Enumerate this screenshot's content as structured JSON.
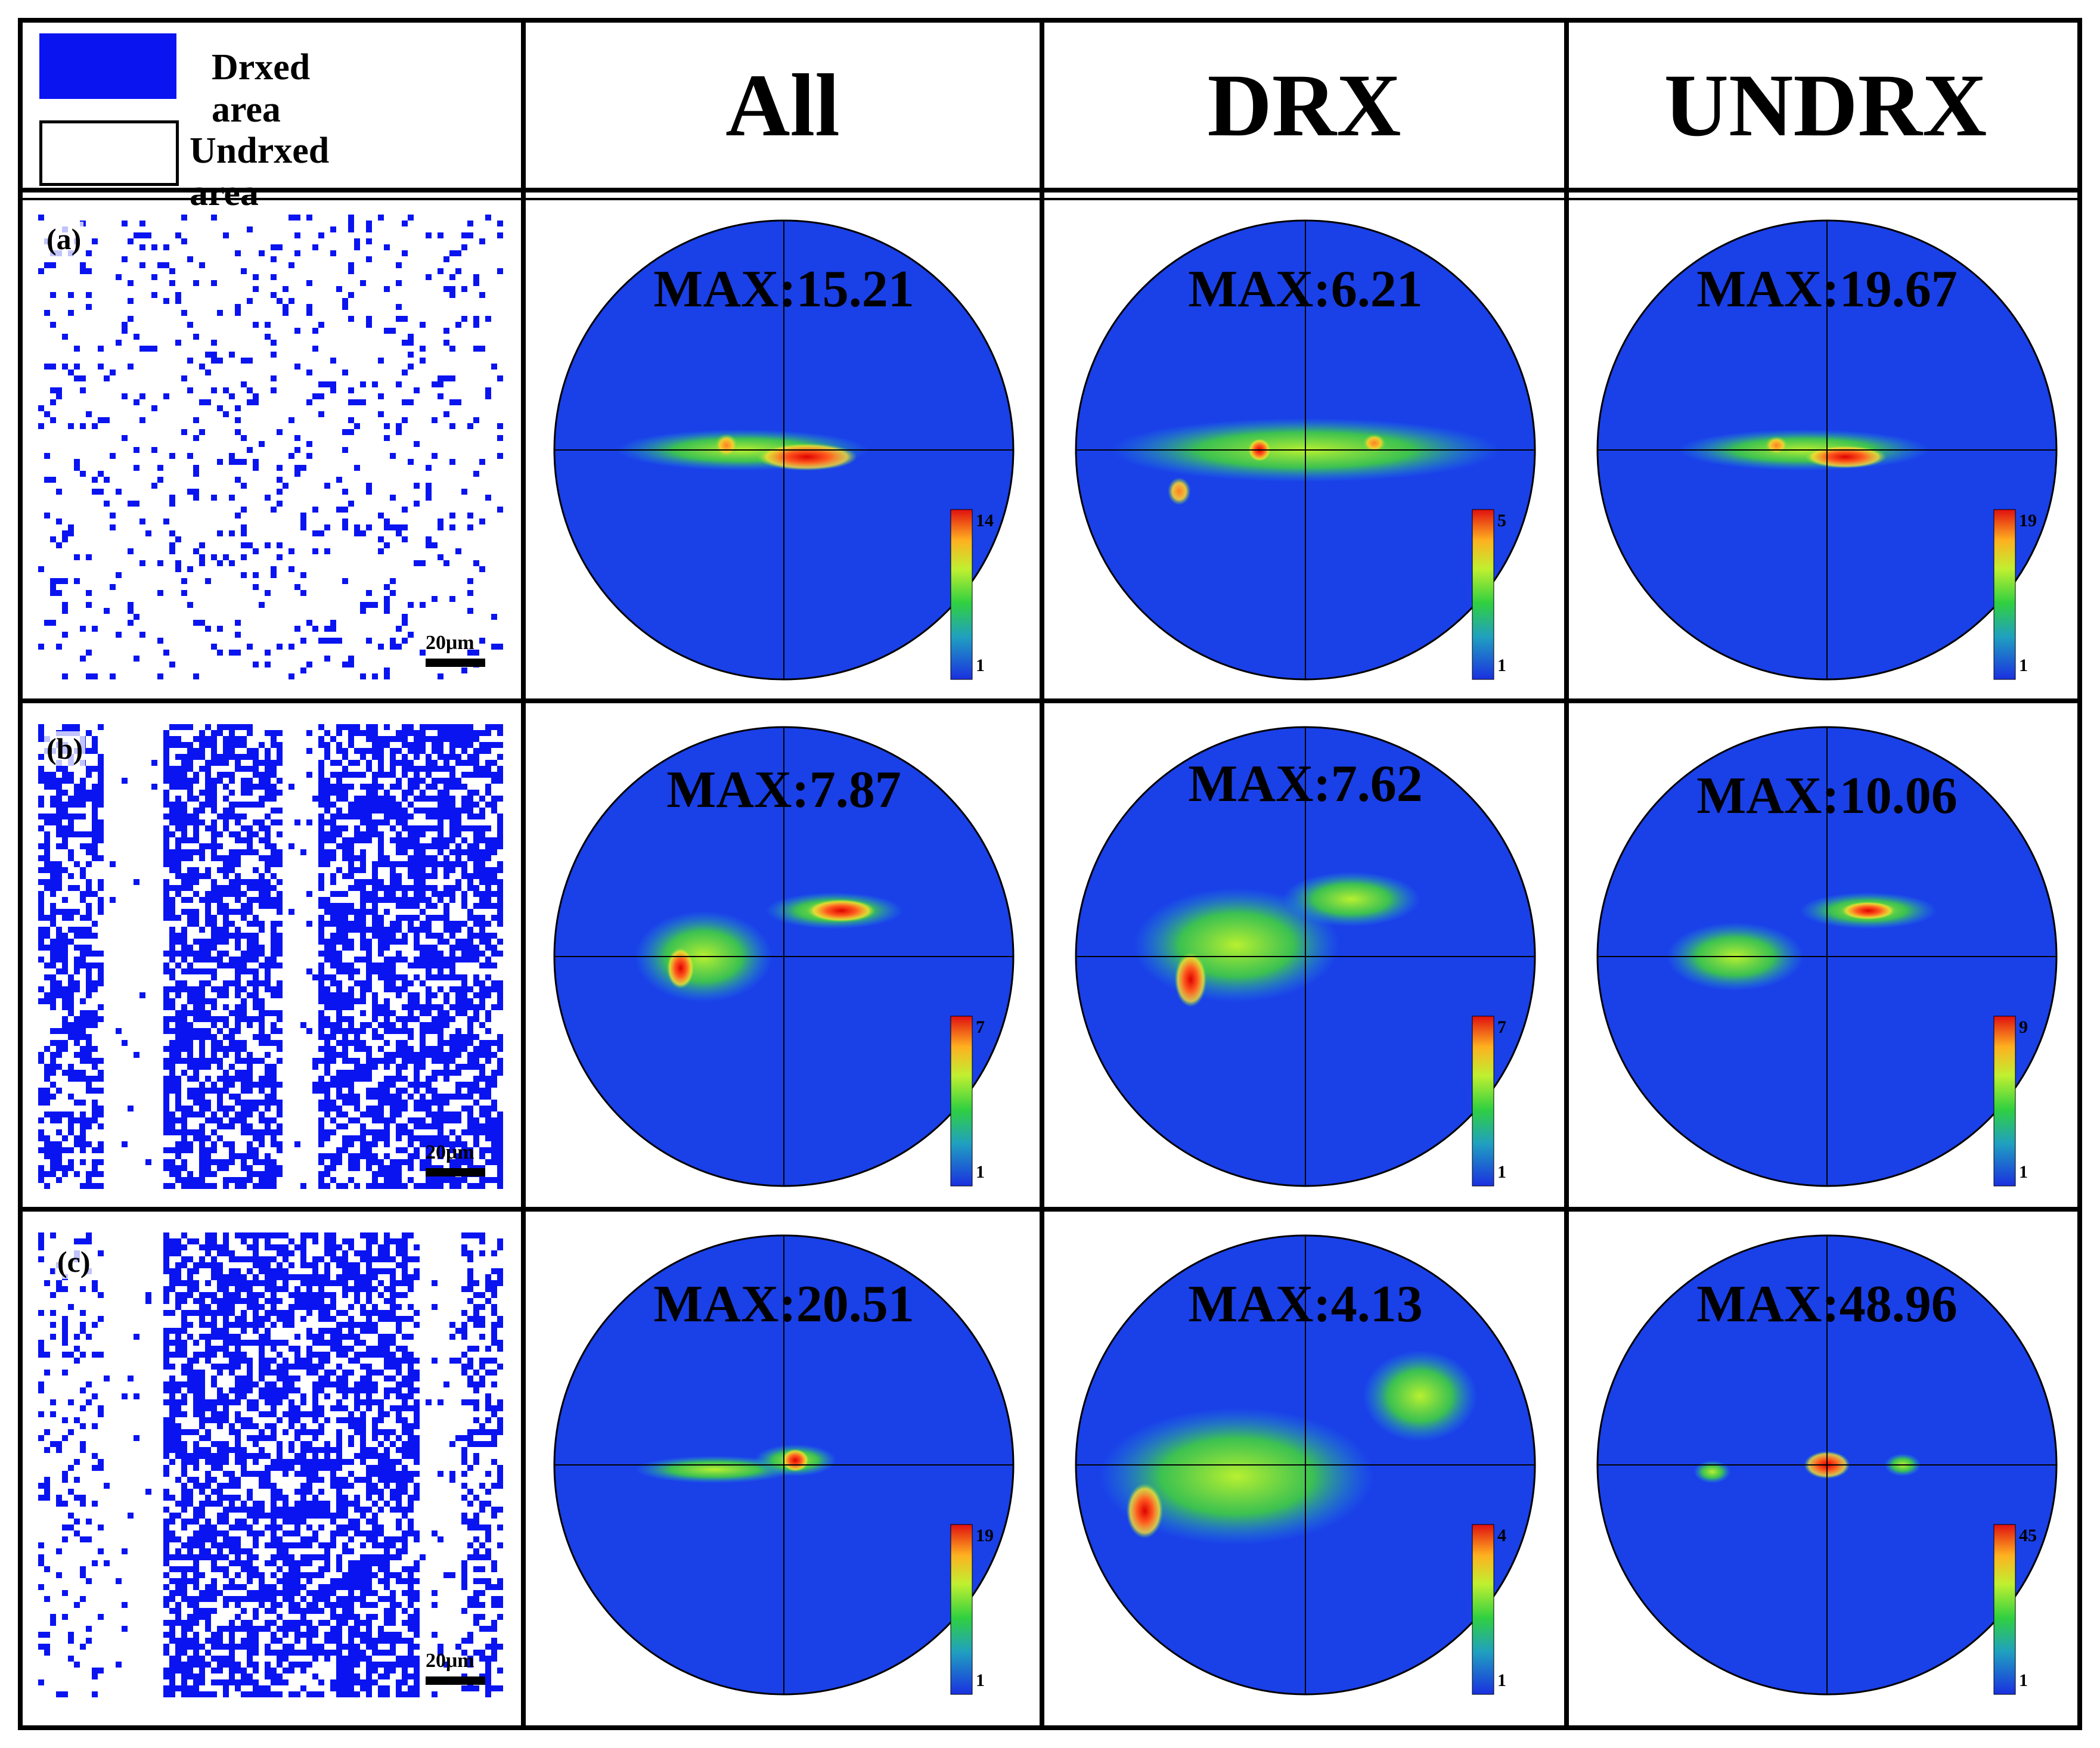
{
  "legend": {
    "drxed_label": "Drxed area",
    "undrxed_label": "Undrxed area",
    "drxed_color": "#0a14f0",
    "undrxed_color": "#ffffff"
  },
  "columns": [
    "All",
    "DRX",
    "UNDRX"
  ],
  "scale_bar_label": "20μm",
  "map_color": "#0a14f0",
  "rows": [
    {
      "label": "(a)",
      "figures": [
        {
          "max_label": "MAX:15.21",
          "cb_max": "14",
          "cb_min": "1"
        },
        {
          "max_label": "MAX:6.21",
          "cb_max": "5",
          "cb_min": "1"
        },
        {
          "max_label": "MAX:19.67",
          "cb_max": "19",
          "cb_min": "1"
        }
      ]
    },
    {
      "label": "(b)",
      "figures": [
        {
          "max_label": "MAX:7.87",
          "cb_max": "7",
          "cb_min": "1"
        },
        {
          "max_label": "MAX:7.62",
          "cb_max": "7",
          "cb_min": "1"
        },
        {
          "max_label": "MAX:10.06",
          "cb_max": "9",
          "cb_min": "1"
        }
      ]
    },
    {
      "label": "(c)",
      "figures": [
        {
          "max_label": "MAX:20.51",
          "cb_max": "19",
          "cb_min": "1"
        },
        {
          "max_label": "MAX:4.13",
          "cb_max": "4",
          "cb_min": "1"
        },
        {
          "max_label": "MAX:48.96",
          "cb_max": "45",
          "cb_min": "1"
        }
      ]
    }
  ]
}
